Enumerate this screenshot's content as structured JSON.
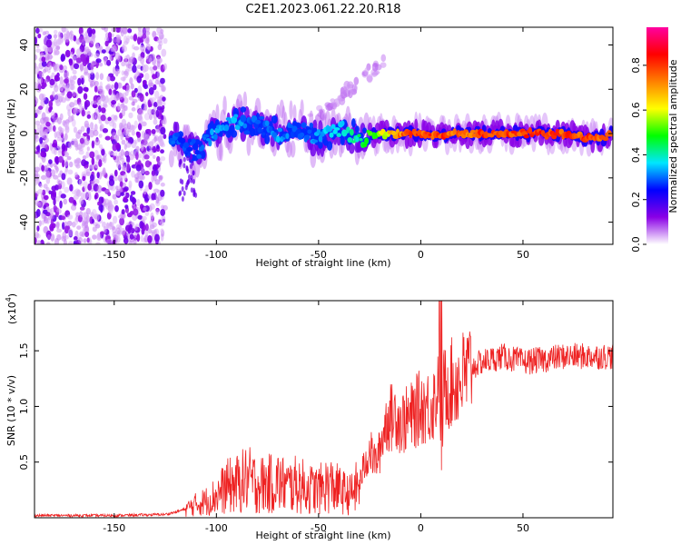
{
  "title": "C2E1.2023.061.22.20.R18",
  "chart_data": [
    {
      "type": "heatmap",
      "xlabel": "Height of straight line (km)",
      "ylabel": "Frequency (Hz)",
      "xlim": [
        -189,
        94
      ],
      "ylim": [
        -50,
        48
      ],
      "xticks": [
        -150,
        -100,
        -50,
        0,
        50
      ],
      "xtick_labels": [
        "-150",
        "-100",
        "-50",
        "0",
        "50"
      ],
      "yticks": [
        -40,
        -20,
        0,
        20,
        40
      ],
      "ytick_labels": [
        "-40",
        "-20",
        "0",
        "20",
        "40"
      ],
      "colorbar": {
        "label": "Normalized spectral amplitude",
        "range": [
          0,
          0.97
        ],
        "ticks": [
          0.0,
          0.2,
          0.4,
          0.6,
          0.8
        ],
        "tick_labels": [
          "0.0",
          "0.2",
          "0.4",
          "0.6",
          "0.8"
        ],
        "colors": [
          "#ffffff",
          "#8a00e6",
          "#0000ff",
          "#00e6ff",
          "#00ff00",
          "#ffff00",
          "#ff8000",
          "#ff0000",
          "#ff00a0"
        ]
      },
      "features": [
        {
          "region": "noise",
          "x_range": [
            -189,
            -125
          ],
          "y_range": [
            -50,
            48
          ],
          "amplitude": 0.05
        },
        {
          "region": "echo",
          "x": [
            -122,
            -110,
            -100,
            -90,
            -80,
            -70,
            -60,
            -50,
            -40,
            -30,
            -20,
            -10,
            0,
            10,
            20,
            30,
            40,
            50,
            60,
            70,
            80,
            90,
            94
          ],
          "center_freq": [
            -2,
            -8,
            2,
            5,
            4,
            0,
            2,
            -2,
            2,
            -2,
            0,
            0,
            0,
            -1,
            0,
            0,
            0,
            0,
            0,
            0,
            -2,
            -2,
            0
          ],
          "peak_amplitude": [
            0.3,
            0.3,
            0.35,
            0.35,
            0.3,
            0.35,
            0.3,
            0.35,
            0.4,
            0.45,
            0.6,
            0.8,
            0.85,
            0.85,
            0.8,
            0.85,
            0.85,
            0.85,
            0.85,
            0.85,
            0.85,
            0.8,
            0.8
          ]
        },
        {
          "region": "streak",
          "x_range": [
            -55,
            -18
          ],
          "y_range": [
            5,
            33
          ],
          "amplitude": 0.05
        }
      ]
    },
    {
      "type": "line",
      "xlabel": "Height of straight line (km)",
      "ylabel": "SNR (10 * v/v)",
      "yscale_label": "(x10",
      "yscale_exponent": "4",
      "yscale_suffix": ")",
      "xlim": [
        -189,
        94
      ],
      "ylim": [
        0,
        1.95
      ],
      "xticks": [
        -150,
        -100,
        -50,
        0,
        50
      ],
      "xtick_labels": [
        "-150",
        "-100",
        "-50",
        "0",
        "50"
      ],
      "yticks": [
        0.5,
        1.0,
        1.5
      ],
      "ytick_labels": [
        "0.5",
        "1.0",
        "1.5"
      ],
      "color": "#ee2222",
      "series": [
        {
          "name": "SNR",
          "x": [
            -189,
            -150,
            -125,
            -120,
            -115,
            -110,
            -105,
            -100,
            -95,
            -90,
            -85,
            -80,
            -75,
            -70,
            -65,
            -60,
            -55,
            -50,
            -45,
            -40,
            -35,
            -30,
            -28,
            -25,
            -22,
            -20,
            -18,
            -16,
            -14,
            -12,
            -10,
            -5,
            0,
            5,
            8,
            9,
            10,
            11,
            12,
            15,
            20,
            25,
            30,
            40,
            50,
            60,
            70,
            80,
            90,
            94
          ],
          "y": [
            0.02,
            0.02,
            0.03,
            0.05,
            0.08,
            0.12,
            0.15,
            0.2,
            0.28,
            0.3,
            0.35,
            0.3,
            0.3,
            0.32,
            0.28,
            0.3,
            0.26,
            0.25,
            0.3,
            0.25,
            0.2,
            0.3,
            0.45,
            0.6,
            0.5,
            0.6,
            0.8,
            0.9,
            0.9,
            0.95,
            0.85,
            0.9,
            1.0,
            1.0,
            1.1,
            1.6,
            0.3,
            1.1,
            1.2,
            1.2,
            1.25,
            1.35,
            1.4,
            1.45,
            1.4,
            1.42,
            1.45,
            1.45,
            1.45,
            1.45
          ]
        }
      ],
      "annotations": [
        {
          "x": 10,
          "y": 1.95,
          "note": "spike"
        },
        {
          "x": 10.5,
          "y": 0.25,
          "note": "dip"
        }
      ]
    }
  ]
}
